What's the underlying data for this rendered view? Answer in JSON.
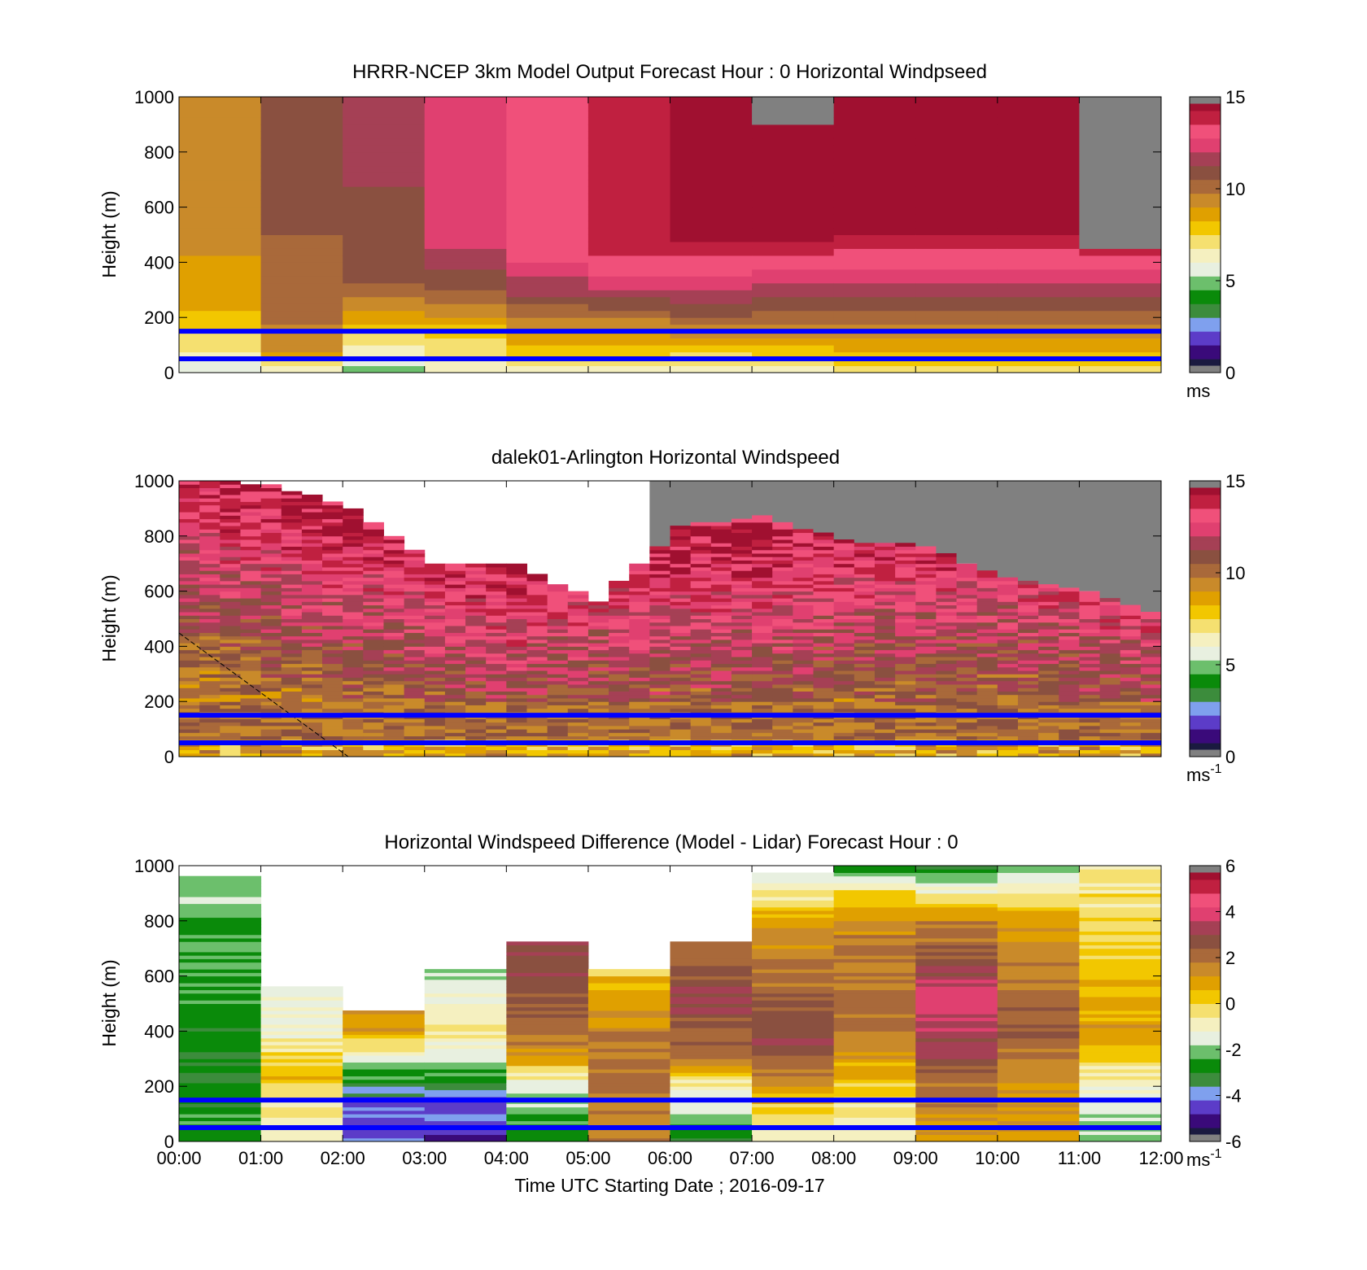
{
  "figure": {
    "xlabel": "Time UTC  Starting Date ; 2016-09-17",
    "x_ticks": [
      "00:00",
      "01:00",
      "02:00",
      "03:00",
      "04:00",
      "05:00",
      "06:00",
      "07:00",
      "08:00",
      "09:00",
      "10:00",
      "11:00",
      "12:00"
    ]
  },
  "colormaps": {
    "speed": [
      "#1a1a40",
      "#3a0a7a",
      "#5c3cc8",
      "#7fa0ee",
      "#3c8c3c",
      "#0a8a0a",
      "#6cbf6c",
      "#e8f0e0",
      "#f5f0c0",
      "#f5e070",
      "#f2c700",
      "#e0a000",
      "#c98a2a",
      "#a9693a",
      "#8a5040",
      "#a54055",
      "#e04070",
      "#f0507a",
      "#c02040",
      "#a01030"
    ],
    "diff": [
      "#1a1a40",
      "#3a0a7a",
      "#5c3cc8",
      "#7fa0ee",
      "#3c8c3c",
      "#0a8a0a",
      "#6cbf6c",
      "#e8f0e0",
      "#f5f0c0",
      "#f5e070",
      "#f2c700",
      "#e0a000",
      "#c98a2a",
      "#a9693a",
      "#8a5040",
      "#a54055",
      "#e04070",
      "#f0507a",
      "#c02040",
      "#a01030"
    ],
    "nodata": "#808080",
    "line": "#0000ff"
  },
  "chart_data": [
    {
      "type": "heatmap",
      "title": "HRRR-NCEP 3km Model Output   Forecast Hour : 0 Horizontal Windpseed",
      "ylabel": "Height (m)",
      "xlim": [
        0,
        12
      ],
      "ylim": [
        0,
        1000
      ],
      "y_ticks": [
        "0",
        "200",
        "400",
        "600",
        "800",
        "1000"
      ],
      "colorbar": {
        "ticks": [
          "0",
          "5",
          "10",
          "15"
        ],
        "range": [
          0,
          15
        ],
        "unit": "ms"
      },
      "hlines_m": [
        150,
        50
      ],
      "columns": [
        {
          "t": [
            0,
            1
          ],
          "profile": [
            [
              0,
              5
            ],
            [
              60,
              6.5
            ],
            [
              150,
              7.5
            ],
            [
              250,
              8.5
            ],
            [
              500,
              9.2
            ],
            [
              1000,
              9.5
            ]
          ]
        },
        {
          "t": [
            1,
            2
          ],
          "profile": [
            [
              0,
              6
            ],
            [
              80,
              9
            ],
            [
              200,
              10
            ],
            [
              500,
              10.5
            ],
            [
              1000,
              10.8
            ]
          ]
        },
        {
          "t": [
            2,
            3
          ],
          "profile": [
            [
              0,
              5
            ],
            [
              120,
              7
            ],
            [
              220,
              9
            ],
            [
              350,
              11
            ],
            [
              1000,
              11.5
            ]
          ]
        },
        {
          "t": [
            3,
            4
          ],
          "profile": [
            [
              0,
              6
            ],
            [
              150,
              8
            ],
            [
              300,
              10.5
            ],
            [
              450,
              12
            ],
            [
              1000,
              12.3
            ]
          ]
        },
        {
          "t": [
            4,
            5
          ],
          "profile": [
            [
              0,
              6.5
            ],
            [
              150,
              9
            ],
            [
              300,
              11.5
            ],
            [
              450,
              13.5
            ],
            [
              1000,
              13.2
            ]
          ]
        },
        {
          "t": [
            5,
            6
          ],
          "profile": [
            [
              0,
              6.5
            ],
            [
              150,
              9
            ],
            [
              300,
              12
            ],
            [
              450,
              14
            ],
            [
              1000,
              14
            ]
          ]
        },
        {
          "t": [
            6,
            7
          ],
          "profile": [
            [
              0,
              6
            ],
            [
              150,
              9.5
            ],
            [
              300,
              12
            ],
            [
              500,
              14.5
            ],
            [
              600,
              15
            ],
            [
              850,
              14.5
            ]
          ]
        },
        {
          "t": [
            7,
            8
          ],
          "profile": [
            [
              0,
              6.5
            ],
            [
              150,
              9.5
            ],
            [
              320,
              12
            ],
            [
              450,
              14
            ],
            [
              500,
              14.5
            ],
            [
              1000,
              15
            ]
          ]
        },
        {
          "t": [
            8,
            9
          ],
          "profile": [
            [
              0,
              7
            ],
            [
              150,
              9.5
            ],
            [
              320,
              12
            ],
            [
              500,
              14.3
            ],
            [
              600,
              15
            ]
          ]
        },
        {
          "t": [
            9,
            10
          ],
          "profile": [
            [
              0,
              7
            ],
            [
              150,
              9.5
            ],
            [
              320,
              12
            ],
            [
              500,
              14.3
            ]
          ]
        },
        {
          "t": [
            10,
            11
          ],
          "profile": [
            [
              0,
              7
            ],
            [
              150,
              9.5
            ],
            [
              320,
              12
            ],
            [
              500,
              14.3
            ],
            [
              600,
              15
            ]
          ]
        },
        {
          "t": [
            11,
            12
          ],
          "profile": [
            [
              0,
              7
            ],
            [
              150,
              9.5
            ],
            [
              320,
              12
            ],
            [
              450,
              14
            ]
          ]
        }
      ],
      "nodata_above_m": [
        null,
        null,
        null,
        null,
        null,
        null,
        1000,
        900,
        1000,
        1000,
        1000,
        450
      ]
    },
    {
      "type": "heatmap",
      "title": "dalek01-Arlington  Horizontal Windspeed",
      "ylabel": "Height (m)",
      "xlim": [
        0,
        12
      ],
      "ylim": [
        0,
        1000
      ],
      "y_ticks": [
        "0",
        "200",
        "400",
        "600",
        "800",
        "1000"
      ],
      "colorbar": {
        "ticks": [
          "0",
          "5",
          "10",
          "15"
        ],
        "range": [
          0,
          15
        ],
        "unit": "ms-1"
      },
      "hlines_m": [
        150,
        50
      ],
      "hours": [
        0,
        1,
        2,
        3,
        4,
        5,
        6,
        7,
        8,
        9,
        10,
        11,
        12
      ],
      "mean_speed": [
        10,
        10.5,
        11,
        11.5,
        12,
        11.5,
        11.5,
        11.5,
        11,
        11,
        11,
        11.5,
        12
      ],
      "data_top_m": [
        1000,
        980,
        900,
        700,
        690,
        560,
        830,
        870,
        780,
        760,
        640,
        600,
        490
      ],
      "nodata_region": "upper-right above ~800 m after 05:45"
    },
    {
      "type": "heatmap",
      "title": "Horizontal Windspeed Difference (Model - Lidar) Forecast Hour : 0",
      "ylabel": "Height (m)",
      "xlim": [
        0,
        12
      ],
      "ylim": [
        0,
        1000
      ],
      "y_ticks": [
        "0",
        "200",
        "400",
        "600",
        "800",
        "1000"
      ],
      "colorbar": {
        "ticks": [
          "-6",
          "-4",
          "-2",
          "0",
          "2",
          "4",
          "6"
        ],
        "range": [
          -6,
          6
        ],
        "unit": "ms-1"
      },
      "hlines_m": [
        150,
        50
      ],
      "columns": [
        {
          "t": [
            0,
            1
          ],
          "top_m": 960,
          "profile": [
            [
              0,
              -2.5
            ],
            [
              300,
              -3
            ],
            [
              960,
              -2
            ]
          ]
        },
        {
          "t": [
            1,
            2
          ],
          "top_m": 560,
          "profile": [
            [
              0,
              -1
            ],
            [
              150,
              -0.5
            ],
            [
              250,
              0.5
            ],
            [
              400,
              -1
            ],
            [
              560,
              -1.5
            ]
          ]
        },
        {
          "t": [
            2,
            3
          ],
          "top_m": 470,
          "profile": [
            [
              0,
              -4.5
            ],
            [
              150,
              -4
            ],
            [
              250,
              -2.5
            ],
            [
              400,
              1
            ],
            [
              470,
              1
            ]
          ]
        },
        {
          "t": [
            3,
            4
          ],
          "top_m": 620,
          "profile": [
            [
              0,
              -5
            ],
            [
              150,
              -4
            ],
            [
              250,
              -2.5
            ],
            [
              400,
              -0.5
            ],
            [
              620,
              -2
            ]
          ]
        },
        {
          "t": [
            4,
            5
          ],
          "top_m": 720,
          "profile": [
            [
              0,
              -3
            ],
            [
              200,
              -1.5
            ],
            [
              300,
              1
            ],
            [
              450,
              2.5
            ],
            [
              720,
              3
            ]
          ]
        },
        {
          "t": [
            5,
            6
          ],
          "top_m": 620,
          "profile": [
            [
              150,
              1.5
            ],
            [
              300,
              2
            ],
            [
              500,
              1
            ],
            [
              620,
              0
            ]
          ]
        },
        {
          "t": [
            6,
            7
          ],
          "top_m": 720,
          "profile": [
            [
              0,
              -3
            ],
            [
              200,
              -1
            ],
            [
              300,
              2
            ],
            [
              500,
              3
            ],
            [
              720,
              2
            ]
          ]
        },
        {
          "t": [
            7,
            8
          ],
          "top_m": 970,
          "profile": [
            [
              0,
              -1
            ],
            [
              200,
              1
            ],
            [
              350,
              3
            ],
            [
              600,
              2
            ],
            [
              800,
              1
            ],
            [
              970,
              -2
            ]
          ]
        },
        {
          "t": [
            8,
            9
          ],
          "top_m": 1000,
          "profile": [
            [
              0,
              -1
            ],
            [
              200,
              0
            ],
            [
              400,
              2
            ],
            [
              700,
              2
            ],
            [
              900,
              0
            ],
            [
              1000,
              -3
            ]
          ]
        },
        {
          "t": [
            9,
            10
          ],
          "top_m": 1000,
          "profile": [
            [
              0,
              1
            ],
            [
              200,
              2
            ],
            [
              400,
              3.5
            ],
            [
              500,
              4
            ],
            [
              800,
              1.5
            ],
            [
              900,
              -1
            ],
            [
              1000,
              -3
            ]
          ]
        },
        {
          "t": [
            10,
            11
          ],
          "top_m": 1000,
          "profile": [
            [
              0,
              1
            ],
            [
              200,
              1
            ],
            [
              400,
              2.5
            ],
            [
              800,
              1
            ],
            [
              1000,
              -2.5
            ]
          ]
        },
        {
          "t": [
            11,
            12
          ],
          "top_m": 1000,
          "profile": [
            [
              0,
              -2
            ],
            [
              200,
              -1
            ],
            [
              400,
              1
            ],
            [
              700,
              0
            ],
            [
              1000,
              -0.5
            ]
          ]
        }
      ]
    }
  ]
}
